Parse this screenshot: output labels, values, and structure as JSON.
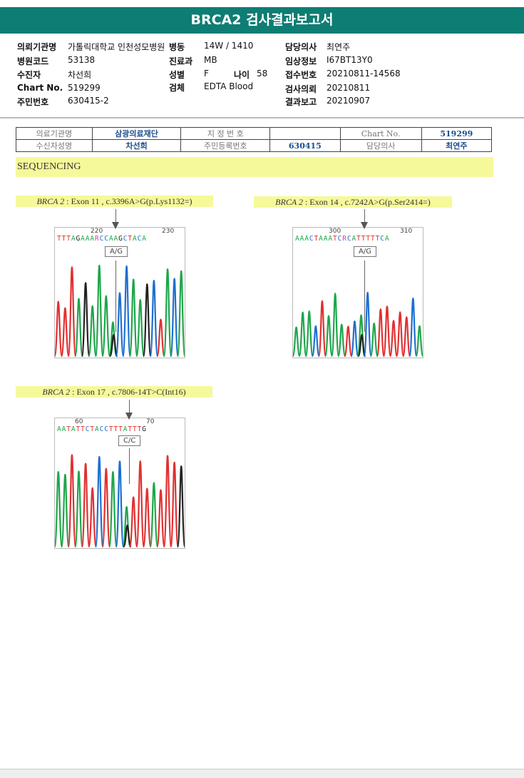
{
  "title": "BRCA2 검사결과보고서",
  "info": {
    "institution_label": "의뢰기관명",
    "institution": "가톨릭대학교 인천성모병원",
    "ward_label": "병동",
    "ward": "14W / 1410",
    "doctor_label": "담당의사",
    "doctor": "최연주",
    "hospital_code_label": "병원코드",
    "hospital_code": "53138",
    "dept_label": "진료과",
    "dept": "MB",
    "clinical_label": "임상정보",
    "clinical": "I67BT13Y0",
    "patient_label": "수진자",
    "patient": "차선희",
    "sex_label": "성별",
    "sex": "F",
    "age_label": "나이",
    "age": "58",
    "receipt_label": "접수번호",
    "receipt": "20210811-14568",
    "chart_label": "Chart No.",
    "chart": "519299",
    "specimen_label": "검체",
    "specimen": "EDTA Blood",
    "request_label": "검사의뢰",
    "request": "20210811",
    "id_label": "주민번호",
    "id": "630415-2",
    "report_label": "결과보고",
    "report": "20210907"
  },
  "scan_table": {
    "row1": [
      "의료기관명",
      "삼광의료재단",
      "지 정 번 호",
      "",
      "Chart No.",
      "519299"
    ],
    "row2": [
      "수신자성명",
      "차선희",
      "주민등록번호",
      "630415",
      "담당의사",
      "최연주"
    ]
  },
  "section": "SEQUENCING",
  "variants": [
    {
      "gene": "BRCA 2",
      "desc": " : Exon 11 , c.3396A>G(p.Lys1132=)",
      "seq": "TTTAGAAARCCAAGCTACA",
      "pos1": "220",
      "pos2": "230",
      "call": "A/G",
      "mark": 8
    },
    {
      "gene": "BRCA 2",
      "desc": " : Exon 14 , c.7242A>G(p.Ser2414=)",
      "seq": "AAACTAAATCRCATTTTTCA",
      "pos1": "300",
      "pos2": "310",
      "call": "A/G",
      "mark": 10
    },
    {
      "gene": "BRCA 2",
      "desc": " : Exon 17 , c.7806-14T>C(Int16)",
      "seq": "AATATTCTACCTTTATTTG",
      "pos1": "60",
      "pos2": "70",
      "call": "C/C",
      "mark": 10
    }
  ],
  "colors": {
    "A": "#1fa64a",
    "C": "#1f6fd0",
    "G": "#222222",
    "T": "#e23030",
    "R": "#d0449a",
    "accent": "#0e7d73"
  }
}
